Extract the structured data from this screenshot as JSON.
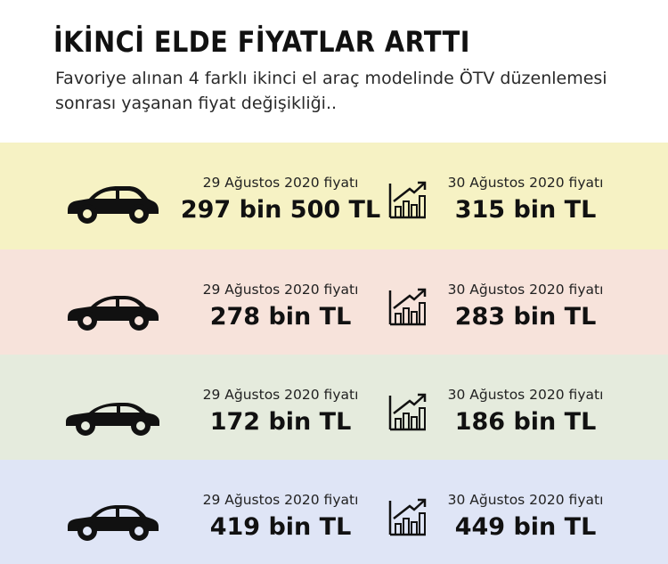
{
  "header": {
    "title": "İKİNCİ ELDE FİYATLAR ARTTI",
    "subtitle": "Favoriye alınan 4 farklı ikinci el araç modelinde ÖTV düzenlemesi sonrası yaşanan fiyat değişikliği.."
  },
  "colors": {
    "band1": "#f6f2c4",
    "band2": "#f7e3db",
    "band3": "#e5ebdd",
    "band4": "#dfe5f6",
    "icon": "#111111"
  },
  "icons": {
    "car": "car-icon",
    "trend": "trend-chart-icon"
  },
  "rows": [
    {
      "old_label": "29 Ağustos 2020 fiyatı",
      "old_price": "297 bin 500 TL",
      "new_label": "30 Ağustos 2020 fiyatı",
      "new_price": "315 bin TL"
    },
    {
      "old_label": "29 Ağustos 2020 fiyatı",
      "old_price": "278 bin TL",
      "new_label": "30 Ağustos 2020 fiyatı",
      "new_price": "283 bin TL"
    },
    {
      "old_label": "29 Ağustos 2020 fiyatı",
      "old_price": "172 bin TL",
      "new_label": "30 Ağustos 2020 fiyatı",
      "new_price": "186 bin TL"
    },
    {
      "old_label": "29 Ağustos 2020 fiyatı",
      "old_price": "419 bin TL",
      "new_label": "30 Ağustos 2020 fiyatı",
      "new_price": "449 bin  TL"
    }
  ]
}
